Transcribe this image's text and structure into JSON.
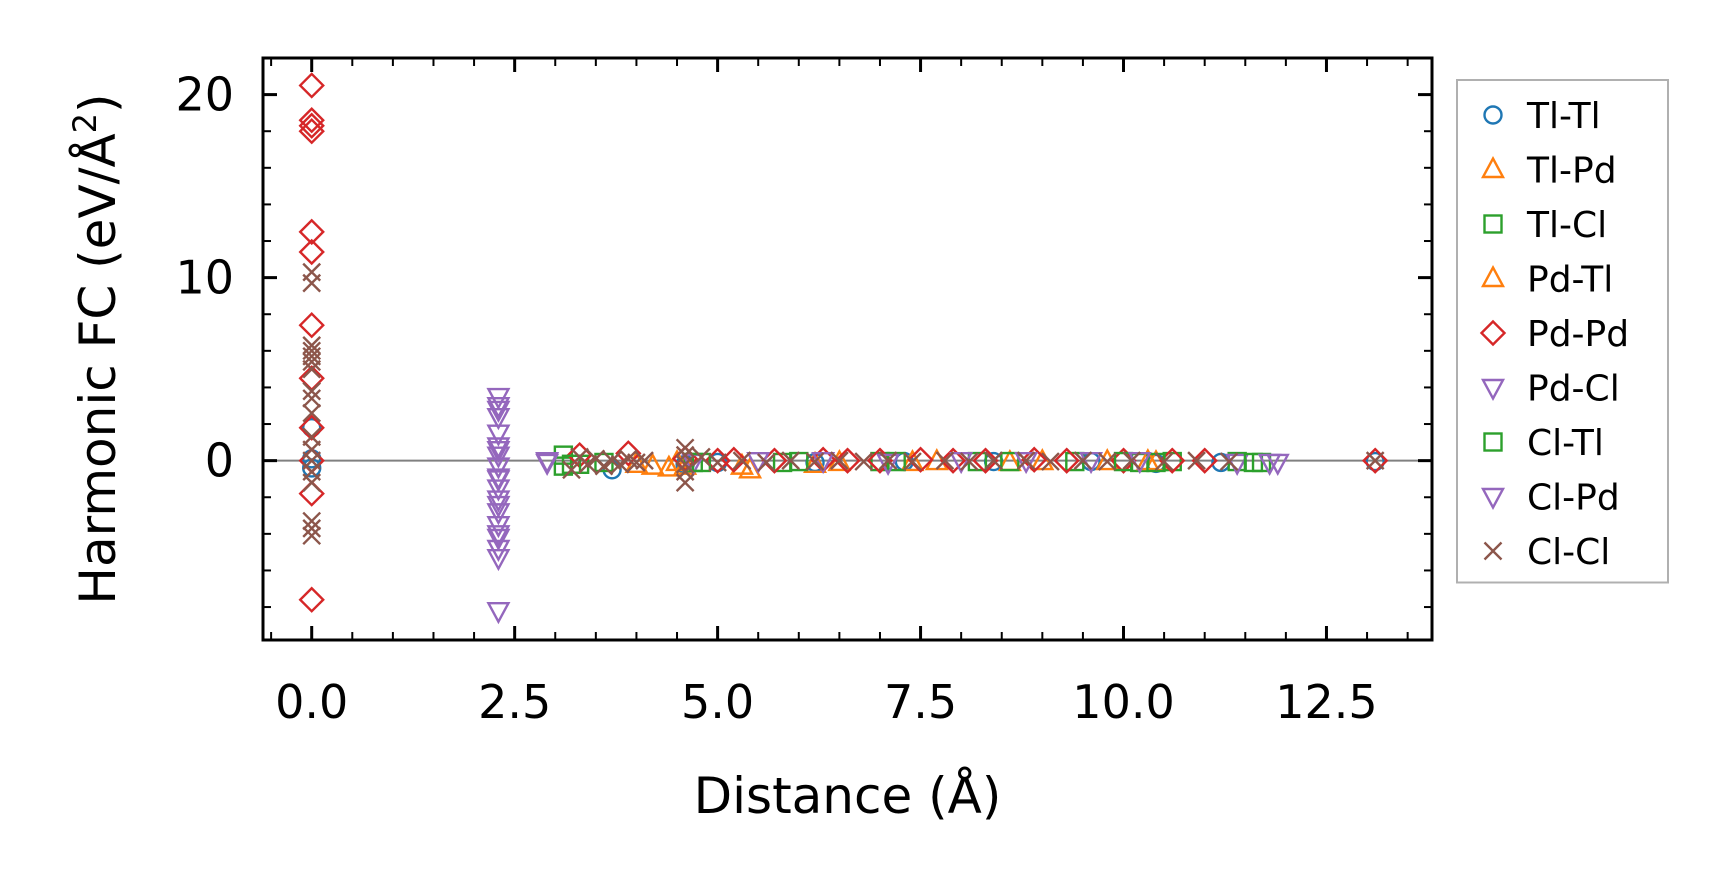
{
  "chart_data": {
    "type": "scatter",
    "title": "",
    "xlabel": "Distance (Å)",
    "ylabel": "Harmonic FC (eV/Å²)",
    "ylabel_parts": {
      "main": "Harmonic FC (eV/Å",
      "sup": "2",
      "end": ")"
    },
    "xlim": [
      -0.6,
      13.8
    ],
    "ylim": [
      -9.8,
      22.0
    ],
    "xticks": [
      0.0,
      2.5,
      5.0,
      7.5,
      10.0,
      12.5
    ],
    "xtick_labels": [
      "0.0",
      "2.5",
      "5.0",
      "7.5",
      "10.0",
      "12.5"
    ],
    "yticks": [
      0,
      10,
      20
    ],
    "ytick_labels": [
      "0",
      "10",
      "20"
    ],
    "zero_line": true,
    "legend_position": "outside-right",
    "series": [
      {
        "name": "Tl-Tl",
        "marker": "circle",
        "color": "#1f77b4",
        "points": [
          [
            0.0,
            1.8
          ],
          [
            0.0,
            0.1
          ],
          [
            0.0,
            -0.4
          ],
          [
            3.7,
            -0.5
          ],
          [
            4.6,
            -0.2
          ],
          [
            5.0,
            -0.1
          ],
          [
            6.2,
            -0.1
          ],
          [
            7.3,
            -0.05
          ],
          [
            8.4,
            -0.05
          ],
          [
            9.6,
            -0.05
          ],
          [
            10.4,
            -0.15
          ],
          [
            11.2,
            -0.1
          ],
          [
            13.1,
            -0.05
          ]
        ]
      },
      {
        "name": "Tl-Pd",
        "marker": "triangle-up",
        "color": "#ff7f0e",
        "points": [
          [
            4.2,
            -0.3
          ],
          [
            4.4,
            -0.4
          ],
          [
            4.6,
            -0.3
          ],
          [
            5.4,
            -0.5
          ],
          [
            6.2,
            -0.2
          ],
          [
            7.4,
            -0.1
          ],
          [
            8.6,
            -0.1
          ],
          [
            9.8,
            -0.05
          ],
          [
            10.4,
            -0.1
          ]
        ]
      },
      {
        "name": "Tl-Cl",
        "marker": "square",
        "color": "#2ca02c",
        "points": [
          [
            3.1,
            -0.3
          ],
          [
            3.1,
            0.3
          ],
          [
            3.3,
            -0.2
          ],
          [
            4.7,
            -0.1
          ],
          [
            5.8,
            -0.1
          ],
          [
            7.0,
            -0.05
          ],
          [
            8.2,
            -0.05
          ],
          [
            9.4,
            -0.05
          ],
          [
            10.2,
            -0.1
          ],
          [
            10.6,
            -0.05
          ],
          [
            11.4,
            -0.05
          ],
          [
            11.7,
            -0.1
          ]
        ]
      },
      {
        "name": "Pd-Tl",
        "marker": "triangle-up",
        "color": "#ff7f0e",
        "points": [
          [
            4.0,
            -0.2
          ],
          [
            4.5,
            -0.1
          ],
          [
            5.3,
            -0.3
          ],
          [
            6.5,
            -0.1
          ],
          [
            7.7,
            -0.05
          ],
          [
            9.0,
            -0.05
          ],
          [
            10.3,
            -0.05
          ]
        ]
      },
      {
        "name": "Pd-Pd",
        "marker": "diamond",
        "color": "#d62728",
        "points": [
          [
            0.0,
            20.5
          ],
          [
            0.0,
            18.6
          ],
          [
            0.0,
            18.3
          ],
          [
            0.0,
            18.0
          ],
          [
            0.0,
            12.5
          ],
          [
            0.0,
            11.4
          ],
          [
            0.0,
            7.4
          ],
          [
            0.0,
            4.5
          ],
          [
            0.0,
            1.8
          ],
          [
            0.0,
            0.0
          ],
          [
            0.0,
            -1.8
          ],
          [
            0.0,
            -7.6
          ],
          [
            3.3,
            0.3
          ],
          [
            3.9,
            0.4
          ],
          [
            4.6,
            0.1
          ],
          [
            5.0,
            0.0
          ],
          [
            5.2,
            0.05
          ],
          [
            5.7,
            0.0
          ],
          [
            6.3,
            0.05
          ],
          [
            6.6,
            0.0
          ],
          [
            7.0,
            0.0
          ],
          [
            7.5,
            0.05
          ],
          [
            7.9,
            0.0
          ],
          [
            8.3,
            0.0
          ],
          [
            8.9,
            0.05
          ],
          [
            9.3,
            0.0
          ],
          [
            10.0,
            0.0
          ],
          [
            10.6,
            0.0
          ],
          [
            11.0,
            0.0
          ],
          [
            13.1,
            0.0
          ]
        ]
      },
      {
        "name": "Pd-Cl",
        "marker": "triangle-down",
        "color": "#9467bd",
        "points": [
          [
            2.3,
            3.5
          ],
          [
            2.3,
            3.0
          ],
          [
            2.3,
            2.4
          ],
          [
            2.3,
            1.5
          ],
          [
            2.3,
            0.8
          ],
          [
            2.3,
            0.3
          ],
          [
            2.3,
            -0.3
          ],
          [
            2.3,
            -0.9
          ],
          [
            2.3,
            -1.5
          ],
          [
            2.3,
            -2.1
          ],
          [
            2.3,
            -2.8
          ],
          [
            2.3,
            -3.5
          ],
          [
            2.3,
            -4.2
          ],
          [
            2.3,
            -4.8
          ],
          [
            2.3,
            -5.3
          ],
          [
            2.3,
            -8.2
          ],
          [
            2.9,
            -0.1
          ],
          [
            4.7,
            -0.1
          ],
          [
            6.3,
            0.0
          ],
          [
            8.0,
            0.0
          ],
          [
            9.6,
            0.0
          ],
          [
            11.4,
            -0.1
          ],
          [
            11.9,
            -0.1
          ]
        ]
      },
      {
        "name": "Cl-Tl",
        "marker": "square",
        "color": "#2ca02c",
        "points": [
          [
            3.2,
            -0.2
          ],
          [
            3.6,
            -0.1
          ],
          [
            4.8,
            -0.1
          ],
          [
            6.0,
            -0.05
          ],
          [
            7.2,
            -0.05
          ],
          [
            8.6,
            -0.05
          ],
          [
            10.0,
            -0.05
          ],
          [
            10.4,
            -0.1
          ],
          [
            11.6,
            -0.1
          ]
        ]
      },
      {
        "name": "Cl-Pd",
        "marker": "triangle-down",
        "color": "#9467bd",
        "points": [
          [
            2.3,
            2.8
          ],
          [
            2.3,
            0.6
          ],
          [
            2.3,
            -1.0
          ],
          [
            2.3,
            -2.4
          ],
          [
            2.3,
            -4.0
          ],
          [
            2.9,
            0.0
          ],
          [
            5.5,
            0.0
          ],
          [
            7.1,
            -0.1
          ],
          [
            8.8,
            0.0
          ],
          [
            10.2,
            0.0
          ],
          [
            11.8,
            -0.1
          ]
        ]
      },
      {
        "name": "Cl-Cl",
        "marker": "x",
        "color": "#8c564b",
        "points": [
          [
            0.0,
            10.3
          ],
          [
            0.0,
            9.7
          ],
          [
            0.0,
            6.3
          ],
          [
            0.0,
            6.0
          ],
          [
            0.0,
            5.7
          ],
          [
            0.0,
            5.4
          ],
          [
            0.0,
            5.0
          ],
          [
            0.0,
            3.8
          ],
          [
            0.0,
            3.4
          ],
          [
            0.0,
            2.6
          ],
          [
            0.0,
            1.3
          ],
          [
            0.0,
            0.6
          ],
          [
            0.0,
            0.0
          ],
          [
            0.0,
            -0.6
          ],
          [
            0.0,
            -1.2
          ],
          [
            0.0,
            -3.3
          ],
          [
            0.0,
            -3.7
          ],
          [
            0.0,
            -4.1
          ],
          [
            3.2,
            -0.5
          ],
          [
            3.3,
            0.2
          ],
          [
            3.4,
            -0.2
          ],
          [
            3.5,
            0.1
          ],
          [
            3.6,
            -0.3
          ],
          [
            3.7,
            0.0
          ],
          [
            3.8,
            -0.2
          ],
          [
            3.9,
            0.1
          ],
          [
            4.0,
            -0.1
          ],
          [
            4.1,
            0.0
          ],
          [
            4.6,
            0.7
          ],
          [
            4.6,
            0.3
          ],
          [
            4.6,
            -0.2
          ],
          [
            4.6,
            -0.6
          ],
          [
            4.6,
            -1.2
          ],
          [
            4.8,
            0.2
          ],
          [
            5.0,
            -0.1
          ],
          [
            5.3,
            0.0
          ],
          [
            5.6,
            -0.1
          ],
          [
            5.9,
            0.0
          ],
          [
            6.2,
            -0.05
          ],
          [
            6.5,
            0.0
          ],
          [
            6.8,
            -0.05
          ],
          [
            7.1,
            0.0
          ],
          [
            7.4,
            -0.05
          ],
          [
            7.8,
            0.0
          ],
          [
            8.1,
            -0.05
          ],
          [
            8.4,
            0.0
          ],
          [
            8.8,
            0.0
          ],
          [
            9.1,
            -0.05
          ],
          [
            9.5,
            0.0
          ],
          [
            9.8,
            -0.05
          ],
          [
            10.1,
            0.0
          ],
          [
            10.5,
            -0.05
          ],
          [
            10.9,
            0.0
          ],
          [
            11.3,
            -0.05
          ],
          [
            13.1,
            0.0
          ]
        ]
      }
    ]
  }
}
